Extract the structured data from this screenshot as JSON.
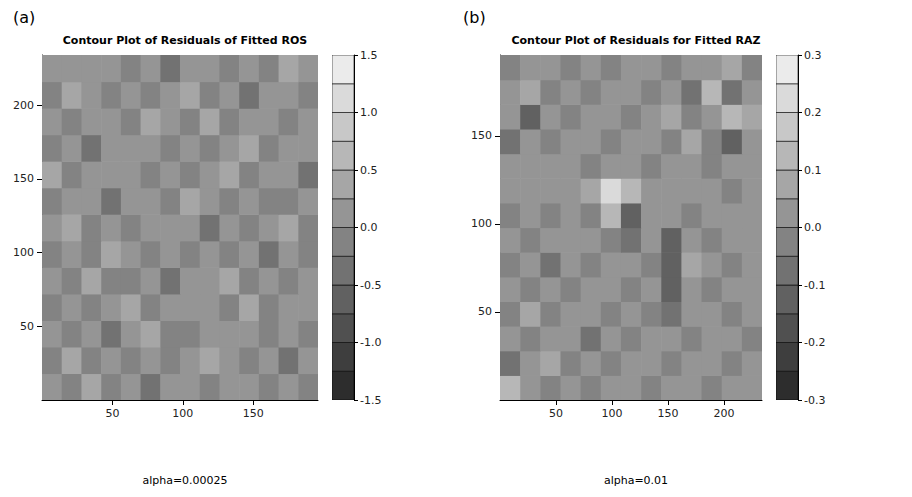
{
  "chart_data": [
    {
      "type": "heatmap",
      "label": "(a)",
      "title": "Contour Plot of Residuals of Fitted ROS",
      "annotation": "alpha=0.00025",
      "xlim": [
        0,
        196
      ],
      "ylim": [
        0,
        234
      ],
      "xticks": [
        50,
        100,
        150
      ],
      "yticks": [
        50,
        100,
        150,
        200
      ],
      "x": [
        7,
        21,
        35,
        49,
        63,
        77,
        91,
        105,
        119,
        133,
        147,
        161,
        175,
        189
      ],
      "y": [
        9,
        27,
        45,
        63,
        81,
        99,
        117,
        135,
        153,
        171,
        189,
        207,
        225
      ],
      "values": [
        [
          0.1,
          -0.1,
          0.3,
          -0.1,
          0.1,
          -0.3,
          0.1,
          0.2,
          -0.1,
          0.05,
          0.05,
          -0.1,
          0.1,
          -0.2
        ],
        [
          -0.1,
          0.3,
          -0.1,
          0.1,
          -0.2,
          0.1,
          -0.1,
          0.1,
          0.3,
          0.05,
          -0.1,
          0.1,
          -0.3,
          0.1
        ],
        [
          0.1,
          -0.1,
          0.1,
          -0.3,
          0.1,
          0.3,
          -0.1,
          -0.1,
          0.05,
          0.05,
          0.1,
          -0.1,
          0.1,
          -0.1
        ],
        [
          -0.2,
          0.1,
          -0.1,
          0.1,
          0.3,
          -0.1,
          0.1,
          0.05,
          0.05,
          -0.1,
          0.3,
          -0.1,
          0.1,
          0.1
        ],
        [
          0.1,
          -0.1,
          0.3,
          -0.1,
          -0.1,
          0.1,
          -0.3,
          0.05,
          0.1,
          0.3,
          -0.1,
          0.1,
          -0.1,
          0.2
        ],
        [
          -0.1,
          0.1,
          -0.1,
          0.3,
          0.1,
          -0.1,
          0.05,
          -0.1,
          0.1,
          -0.1,
          0.1,
          -0.3,
          0.1,
          -0.1
        ],
        [
          0.1,
          0.3,
          -0.1,
          0.1,
          -0.1,
          0.05,
          0.05,
          0.1,
          -0.3,
          0.1,
          -0.1,
          0.1,
          0.3,
          -0.1
        ],
        [
          -0.1,
          0.1,
          0.1,
          -0.3,
          0.1,
          0.05,
          -0.1,
          0.3,
          0.1,
          -0.1,
          0.1,
          -0.1,
          -0.1,
          0.1
        ],
        [
          0.3,
          -0.1,
          0.1,
          0.1,
          0.05,
          -0.1,
          0.1,
          -0.1,
          0.1,
          0.3,
          -0.1,
          0.1,
          0.1,
          -0.3
        ],
        [
          -0.1,
          0.1,
          -0.3,
          0.05,
          0.05,
          0.1,
          -0.1,
          0.1,
          -0.1,
          0.1,
          0.3,
          -0.1,
          0.1,
          0.1
        ],
        [
          0.1,
          -0.1,
          0.1,
          0.05,
          -0.1,
          0.3,
          0.1,
          -0.1,
          0.3,
          -0.1,
          0.1,
          0.1,
          -0.1,
          0.1
        ],
        [
          -0.1,
          0.3,
          0.05,
          -0.1,
          0.1,
          -0.1,
          0.1,
          0.3,
          -0.1,
          0.1,
          -0.3,
          0.1,
          0.1,
          -0.1
        ],
        [
          0.1,
          0.05,
          0.05,
          0.1,
          -0.1,
          0.1,
          -0.3,
          0.1,
          0.1,
          -0.1,
          0.1,
          -0.1,
          0.3,
          0.1
        ]
      ],
      "color_range": [
        -1.5,
        1.5
      ],
      "color_levels": [
        -1.5,
        -1.25,
        -1.0,
        -0.75,
        -0.5,
        -0.25,
        0,
        0.25,
        0.5,
        0.75,
        1.0,
        1.25,
        1.5
      ],
      "color_ticks": [
        -1.5,
        {
          "value": -1,
          "label": "-1.0"
        },
        -0.5,
        {
          "value": 0,
          "label": "0.0"
        },
        0.5,
        {
          "value": 1,
          "label": "1.0"
        },
        1.5
      ]
    },
    {
      "type": "heatmap",
      "label": "(b)",
      "title": "Contour Plot of Residuals for Fitted RAZ",
      "annotation": "alpha=0.01",
      "xlim": [
        0,
        234
      ],
      "ylim": [
        0,
        196
      ],
      "xticks": [
        50,
        100,
        150,
        200
      ],
      "yticks": [
        50,
        100,
        150
      ],
      "x": [
        9,
        27,
        45,
        63,
        81,
        99,
        117,
        135,
        153,
        171,
        189,
        207,
        225
      ],
      "y": [
        7,
        21,
        35,
        49,
        63,
        77,
        91,
        105,
        119,
        133,
        147,
        161,
        175,
        189
      ],
      "values": [
        [
          0.1,
          0.02,
          -0.03,
          0.02,
          -0.03,
          0.02,
          0.02,
          -0.03,
          0.02,
          0.02,
          -0.03,
          0.02,
          0.02
        ],
        [
          -0.06,
          0.02,
          0.07,
          -0.03,
          0.02,
          -0.03,
          0.02,
          0.02,
          -0.03,
          0.02,
          0.02,
          -0.03,
          0.02
        ],
        [
          0.02,
          -0.03,
          0.02,
          0.02,
          -0.06,
          0.02,
          -0.03,
          0.02,
          0.02,
          -0.03,
          0.02,
          0.02,
          -0.03
        ],
        [
          -0.03,
          0.07,
          -0.03,
          0.02,
          0.02,
          -0.03,
          0.02,
          -0.03,
          -0.08,
          0.02,
          0.02,
          -0.03,
          0.02
        ],
        [
          0.02,
          -0.03,
          0.02,
          -0.03,
          0.02,
          0.02,
          -0.03,
          0.02,
          -0.12,
          0.02,
          -0.03,
          0.02,
          0.02
        ],
        [
          -0.03,
          0.02,
          -0.06,
          0.02,
          -0.03,
          0.02,
          0.02,
          -0.03,
          -0.15,
          0.07,
          0.02,
          -0.03,
          0.02
        ],
        [
          0.02,
          -0.03,
          0.02,
          0.02,
          0.02,
          -0.03,
          -0.08,
          0.02,
          -0.12,
          0.02,
          -0.03,
          0.02,
          0.02
        ],
        [
          -0.03,
          0.02,
          -0.03,
          0.02,
          -0.03,
          0.12,
          -0.12,
          0.02,
          0.02,
          -0.03,
          0.02,
          0.02,
          0.02
        ],
        [
          0.02,
          0.02,
          0.02,
          0.02,
          0.07,
          0.22,
          0.12,
          0.02,
          0.02,
          0.02,
          0.02,
          -0.03,
          0.02
        ],
        [
          0.02,
          0.02,
          0.02,
          0.02,
          -0.03,
          0.02,
          0.02,
          -0.03,
          0.02,
          0.02,
          -0.03,
          0.02,
          0.02
        ],
        [
          -0.08,
          0.02,
          -0.03,
          0.02,
          0.02,
          -0.03,
          0.02,
          0.02,
          -0.03,
          0.07,
          -0.03,
          -0.12,
          0.02
        ],
        [
          0.02,
          -0.12,
          0.02,
          -0.03,
          0.02,
          0.02,
          -0.03,
          0.02,
          0.07,
          -0.03,
          0.02,
          0.12,
          0.07
        ],
        [
          0.02,
          0.07,
          -0.03,
          0.02,
          -0.03,
          0.02,
          0.02,
          -0.03,
          0.02,
          -0.06,
          0.12,
          -0.08,
          0.02
        ],
        [
          -0.03,
          0.02,
          0.02,
          -0.03,
          0.02,
          -0.03,
          0.02,
          0.02,
          -0.03,
          0.02,
          0.02,
          0.07,
          -0.03
        ]
      ],
      "color_range": [
        -0.3,
        0.3
      ],
      "color_levels": [
        -0.3,
        -0.25,
        -0.2,
        -0.15,
        -0.1,
        -0.05,
        0,
        0.05,
        0.1,
        0.15,
        0.2,
        0.25,
        0.3
      ],
      "color_ticks": [
        -0.3,
        -0.2,
        -0.1,
        {
          "value": 0,
          "label": "0.0"
        },
        0.1,
        0.2,
        0.3
      ]
    }
  ]
}
